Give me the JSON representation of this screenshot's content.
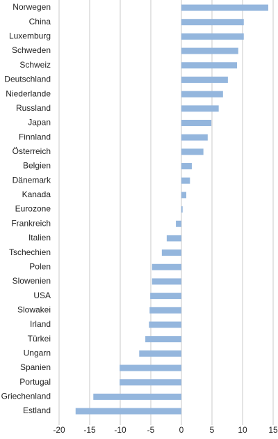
{
  "chart_data": {
    "type": "barh",
    "categories": [
      "Norwegen",
      "China",
      "Luxemburg",
      "Schweden",
      "Schweiz",
      "Deutschland",
      "Niederlande",
      "Russland",
      "Japan",
      "Finnland",
      "Österreich",
      "Belgien",
      "Dänemark",
      "Kanada",
      "Eurozone",
      "Frankreich",
      "Italien",
      "Tschechien",
      "Polen",
      "Slowenien",
      "USA",
      "Slowakei",
      "Irland",
      "Türkei",
      "Ungarn",
      "Spanien",
      "Portugal",
      "Griechenland",
      "Estland"
    ],
    "values": [
      14.2,
      10.2,
      10.2,
      9.3,
      9.1,
      7.6,
      6.8,
      6.1,
      4.9,
      4.3,
      3.6,
      1.7,
      1.4,
      0.8,
      0.2,
      -0.9,
      -2.4,
      -3.2,
      -4.8,
      -4.8,
      -5.1,
      -5.2,
      -5.3,
      -5.9,
      -6.9,
      -10.1,
      -10.1,
      -14.4,
      -17.3
    ],
    "color": "#94b6dd",
    "xlim": [
      -20,
      15
    ],
    "xticks": [
      -20,
      -15,
      -10,
      -5,
      0,
      5,
      10,
      15
    ],
    "grid": true
  }
}
